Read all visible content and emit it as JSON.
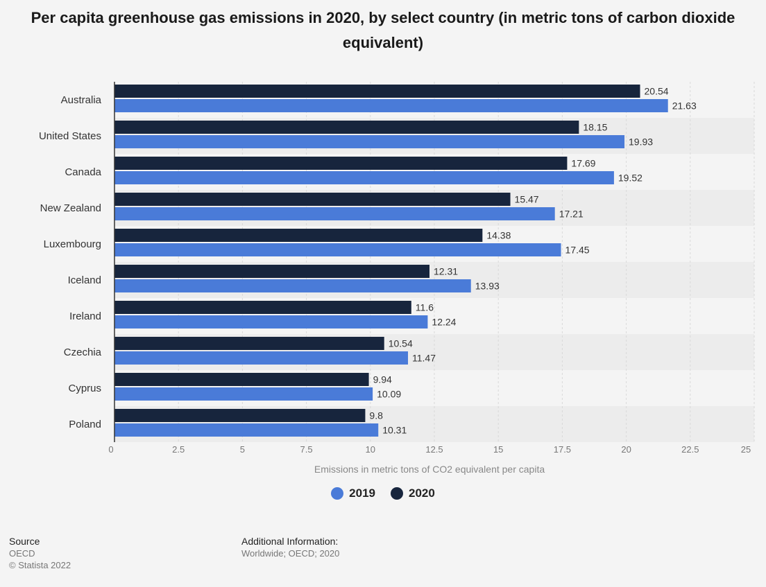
{
  "title": "Per capita greenhouse gas emissions in 2020, by select country (in metric tons of carbon dioxide equivalent)",
  "colors": {
    "2019": "#4a7bd8",
    "2020": "#17253d",
    "band": "#ececec",
    "grid": "#d9d9d9",
    "axis": "#333333"
  },
  "chart_data": {
    "type": "bar",
    "orientation": "horizontal",
    "categories": [
      "Australia",
      "United States",
      "Canada",
      "New Zealand",
      "Luxembourg",
      "Iceland",
      "Ireland",
      "Czechia",
      "Cyprus",
      "Poland"
    ],
    "series": [
      {
        "name": "2020",
        "values": [
          20.54,
          18.15,
          17.69,
          15.47,
          14.38,
          12.31,
          11.6,
          10.54,
          9.94,
          9.8
        ]
      },
      {
        "name": "2019",
        "values": [
          21.63,
          19.93,
          19.52,
          17.21,
          17.45,
          13.93,
          12.24,
          11.47,
          10.09,
          10.31
        ]
      }
    ],
    "xlabel": "Emissions in metric tons of CO2 equivalent per capita",
    "xlim": [
      0,
      25
    ],
    "xticks": [
      0,
      2.5,
      5,
      7.5,
      10,
      12.5,
      15,
      17.5,
      20,
      22.5,
      25
    ],
    "xtick_labels": [
      "0",
      "2.5",
      "5",
      "7.5",
      "10",
      "12.5",
      "15",
      "17.5",
      "20",
      "22.5",
      "25"
    ],
    "grid": true,
    "legend_position": "bottom"
  },
  "legend": [
    {
      "label": "2019",
      "color": "#4a7bd8"
    },
    {
      "label": "2020",
      "color": "#17253d"
    }
  ],
  "footer": {
    "source_heading": "Source",
    "source_text": "OECD",
    "copyright": "© Statista 2022",
    "additional_heading": "Additional Information:",
    "additional_text": "Worldwide; OECD; 2020"
  }
}
